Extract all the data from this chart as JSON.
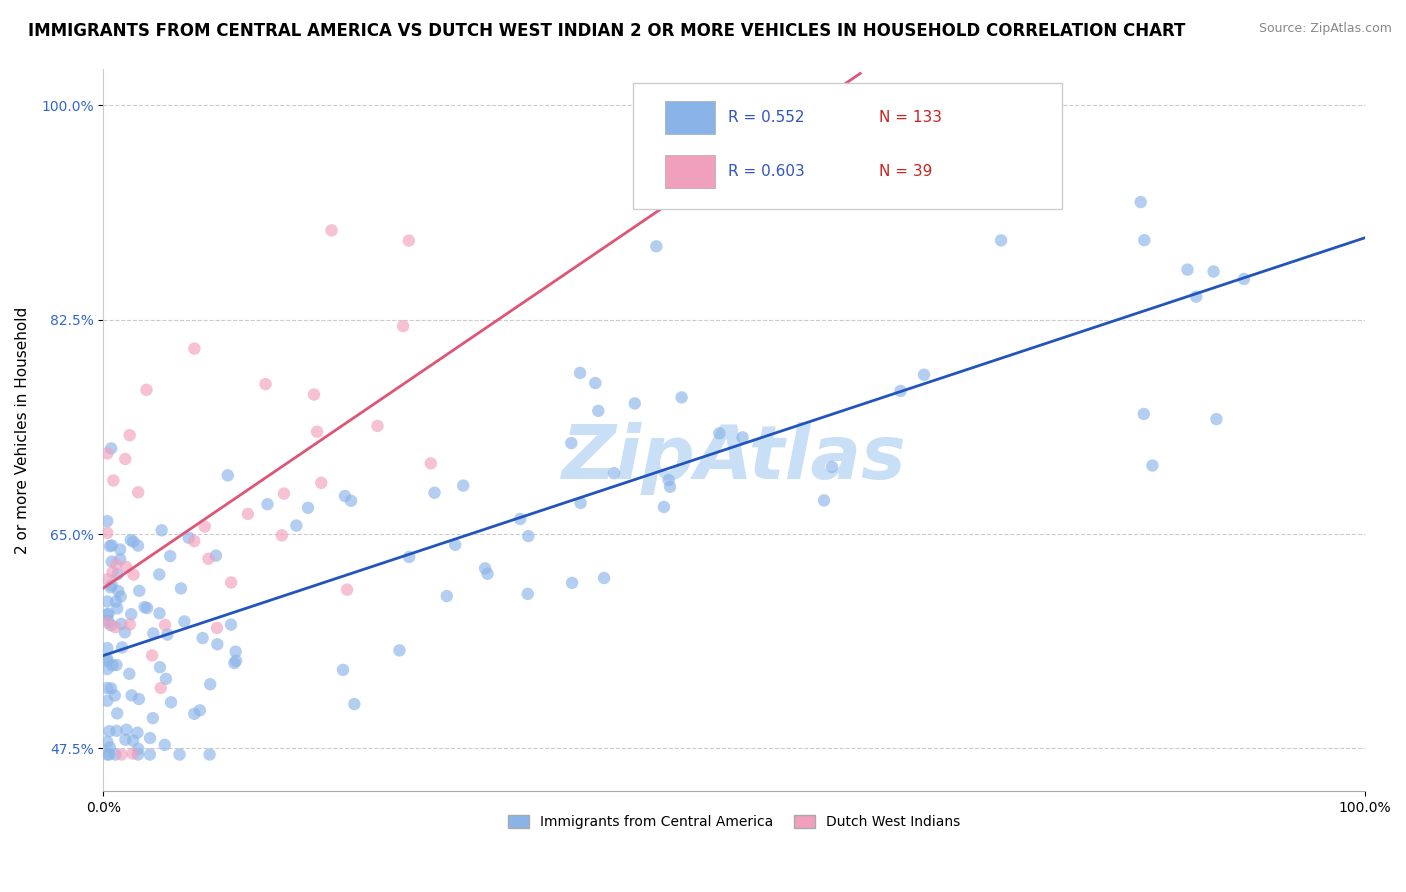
{
  "title": "IMMIGRANTS FROM CENTRAL AMERICA VS DUTCH WEST INDIAN 2 OR MORE VEHICLES IN HOUSEHOLD CORRELATION CHART",
  "source": "Source: ZipAtlas.com",
  "ylabel": "2 or more Vehicles in Household",
  "xlim": [
    0.0,
    100.0
  ],
  "ylim": [
    44.0,
    103.0
  ],
  "xtick_values": [
    0.0,
    100.0
  ],
  "xticklabels": [
    "0.0%",
    "100.0%"
  ],
  "ytick_values": [
    47.5,
    65.0,
    82.5,
    100.0
  ],
  "ytick_labels": [
    "47.5%",
    "65.0%",
    "82.5%",
    "100.0%"
  ],
  "blue_R": 0.552,
  "blue_N": 133,
  "pink_R": 0.603,
  "pink_N": 39,
  "blue_color": "#8ab4e8",
  "pink_color": "#f0a0bc",
  "blue_line_color": "#2255bb",
  "pink_line_color": "#dd5577",
  "watermark": "ZipAtlas",
  "watermark_color": "#c8dff5",
  "title_fontsize": 12,
  "label_fontsize": 11,
  "axis_color": "#3366cc",
  "legend_text_color": "#3355bb",
  "legend_n_color": "#cc2222",
  "bottom_legend_blue": "Immigrants from Central America",
  "bottom_legend_pink": "Dutch West Indians"
}
